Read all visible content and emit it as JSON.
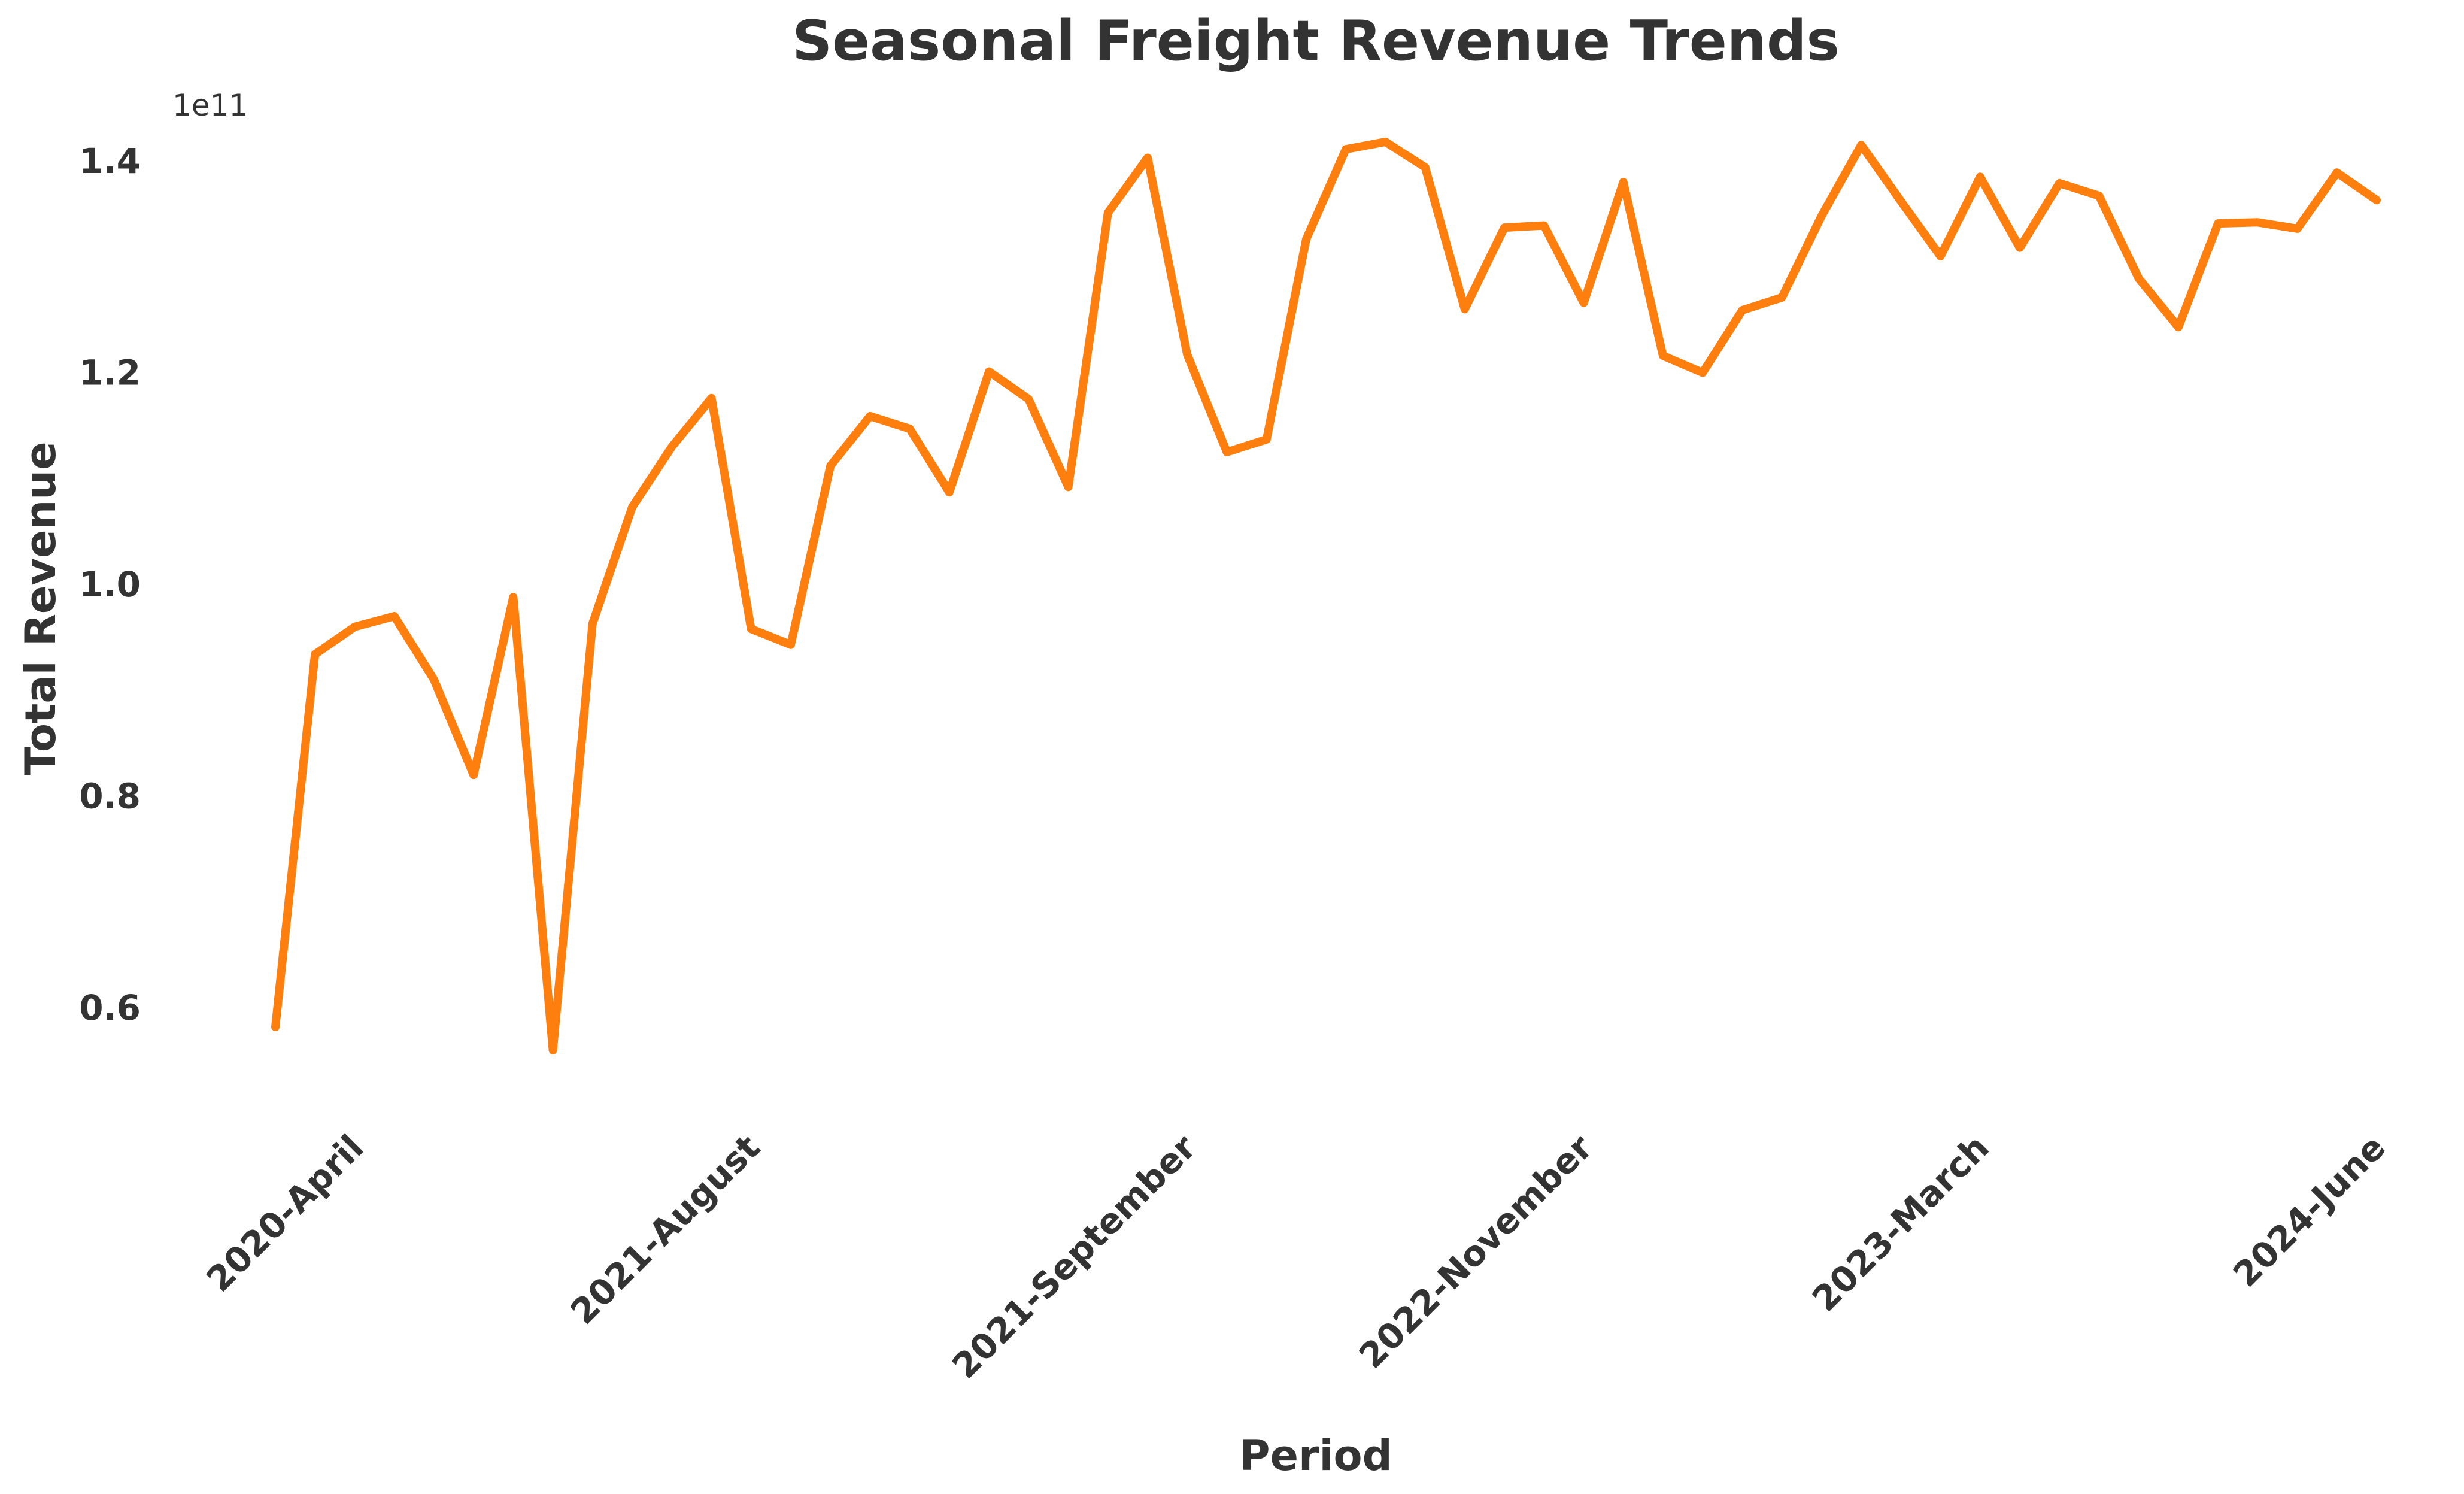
{
  "colors": {
    "line": "#ff7f0e",
    "text": "#333333",
    "background": "#ffffff"
  },
  "chart_data": {
    "type": "line",
    "title": "Seasonal Freight Revenue Trends",
    "xlabel": "Period",
    "ylabel": "Total Revenue",
    "y_offset_label": "1e11",
    "y_scale_factor": 100000000000,
    "ylim": [
      0.5,
      1.47
    ],
    "yticks": [
      0.6,
      0.8,
      1.0,
      1.2,
      1.4
    ],
    "ytick_labels": [
      "0.6",
      "0.8",
      "1.0",
      "1.2",
      "1.4"
    ],
    "xtick_labels": [
      {
        "label": "2020-April",
        "index": 2
      },
      {
        "label": "2021-August",
        "index": 12
      },
      {
        "label": "2021-September",
        "index": 23
      },
      {
        "label": "2022-November",
        "index": 33
      },
      {
        "label": "2023-March",
        "index": 43
      },
      {
        "label": "2024-June",
        "index": 53
      }
    ],
    "grid": false,
    "legend": "none",
    "series": [
      {
        "values": [
          0.582,
          0.934,
          0.96,
          0.97,
          0.91,
          0.82,
          0.988,
          0.56,
          0.963,
          1.073,
          1.13,
          1.176,
          0.958,
          0.943,
          1.112,
          1.159,
          1.147,
          1.087,
          1.201,
          1.175,
          1.092,
          1.351,
          1.403,
          1.217,
          1.125,
          1.137,
          1.326,
          1.411,
          1.418,
          1.394,
          1.26,
          1.337,
          1.339,
          1.266,
          1.38,
          1.216,
          1.2,
          1.259,
          1.271,
          1.348,
          1.415,
          1.362,
          1.31,
          1.385,
          1.318,
          1.379,
          1.367,
          1.289,
          1.243,
          1.341,
          1.342,
          1.336,
          1.389,
          1.363
        ]
      }
    ]
  }
}
